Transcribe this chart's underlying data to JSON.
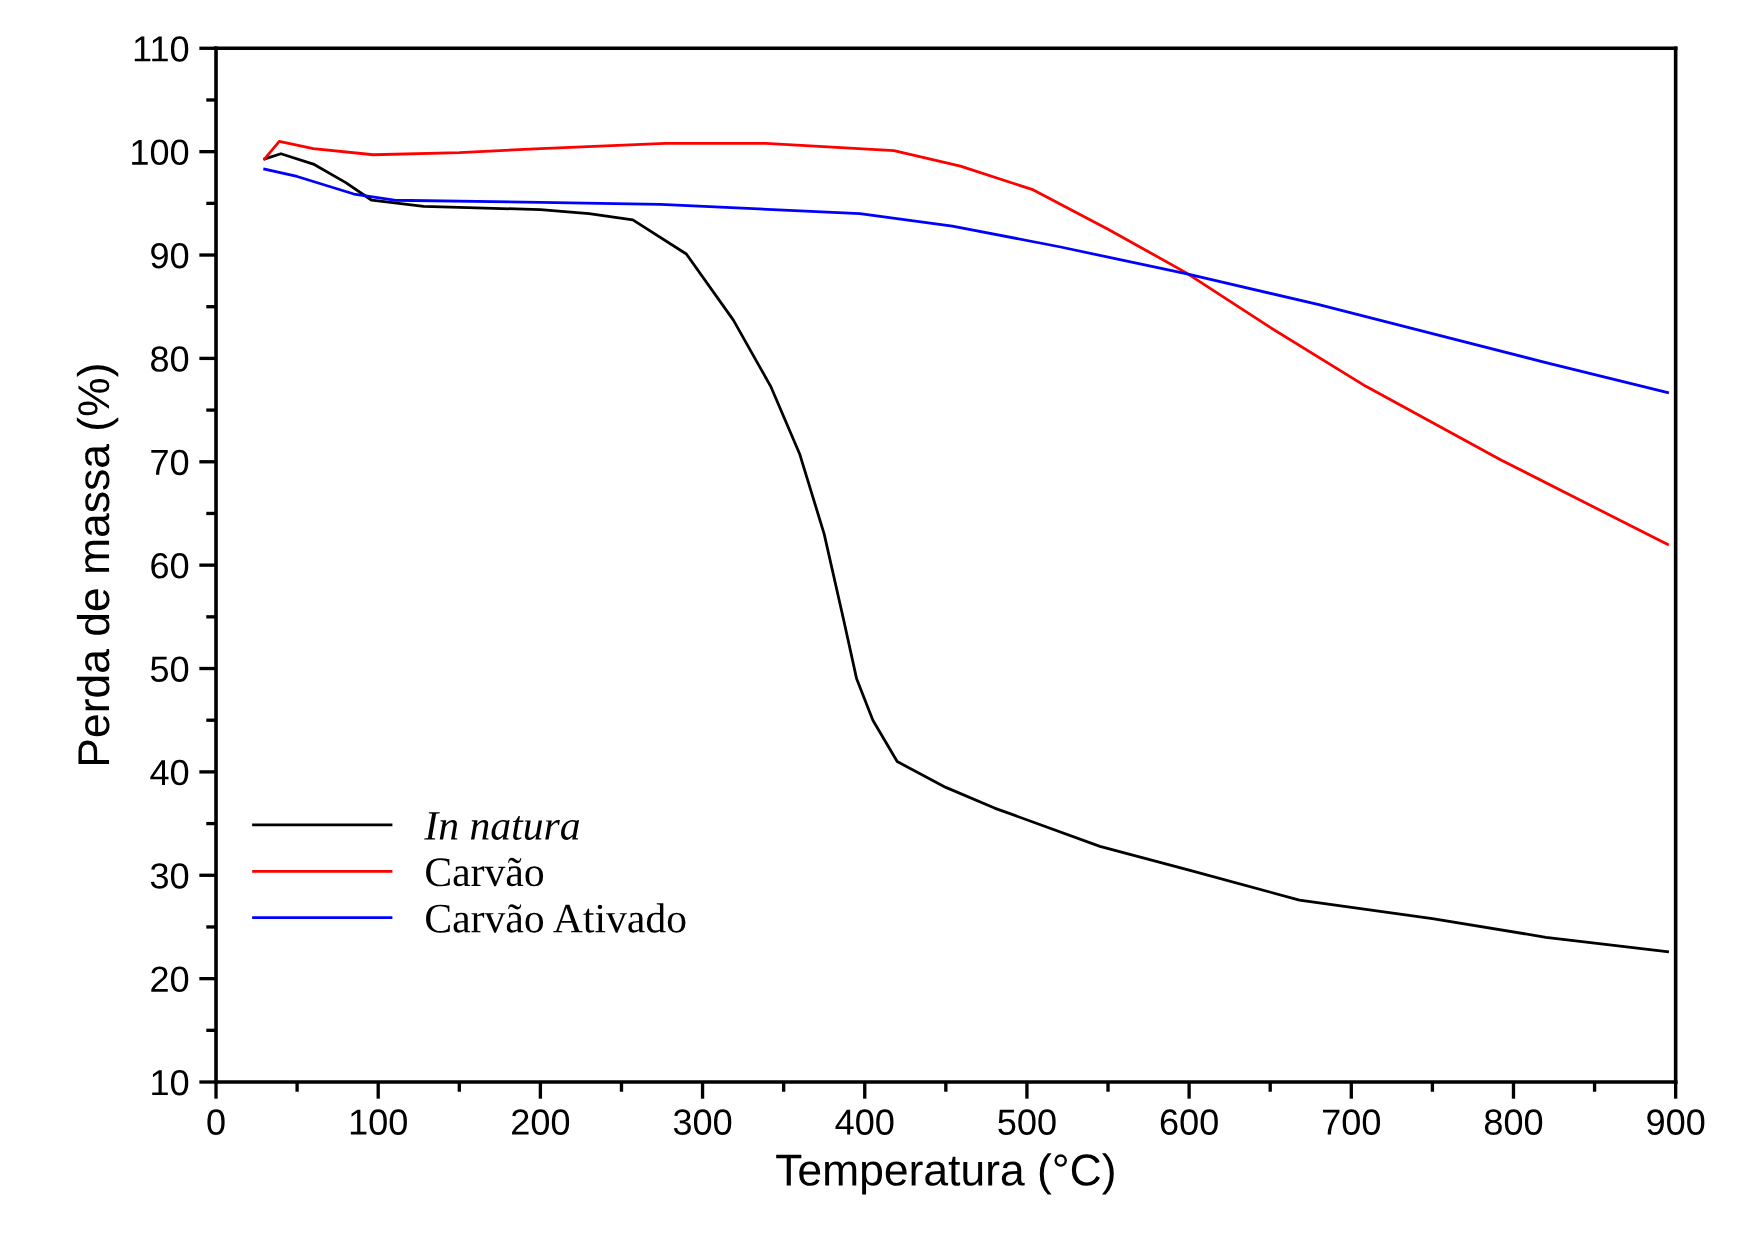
{
  "chart_data": {
    "type": "line",
    "xlabel": "Temperatura (°C)",
    "ylabel": "Perda de massa (%)",
    "xlim": [
      0,
      900
    ],
    "ylim": [
      10,
      110
    ],
    "xticks": [
      0,
      100,
      200,
      300,
      400,
      500,
      600,
      700,
      800,
      900
    ],
    "yticks": [
      10,
      20,
      30,
      40,
      50,
      60,
      70,
      80,
      90,
      100,
      110
    ],
    "grid": false,
    "legend": "bottom left",
    "marker": "none",
    "line_style": "solid",
    "series": [
      {
        "name": "In natura",
        "color": "#000000",
        "x": [
          30,
          40,
          60,
          80,
          96,
          128,
          150,
          200,
          230,
          257,
          290,
          319,
          342,
          360,
          375,
          387,
          395,
          405,
          420,
          450,
          480,
          545,
          600,
          668,
          750,
          820,
          895
        ],
        "values": [
          99.3,
          99.8,
          98.8,
          97,
          95.3,
          94.7,
          94.6,
          94.4,
          94.0,
          93.4,
          90.1,
          83.7,
          77.3,
          70.7,
          63,
          54.7,
          49,
          45,
          41,
          38.5,
          36.5,
          32.8,
          30.5,
          27.6,
          25.8,
          24,
          22.6
        ]
      },
      {
        "name": "Carvão",
        "color": "#ff0000",
        "x": [
          30,
          39,
          60,
          97,
          150,
          200,
          277,
          339,
          418,
          459,
          504,
          550,
          598,
          650,
          709,
          792,
          895
        ],
        "values": [
          99.3,
          101.0,
          100.3,
          99.7,
          99.9,
          100.3,
          100.8,
          100.8,
          100.1,
          98.6,
          96.3,
          92.5,
          88.3,
          83.0,
          77.3,
          70.2,
          62.0
        ]
      },
      {
        "name": "Carvão Ativado",
        "color": "#0000ff",
        "x": [
          30,
          50,
          85,
          110,
          200,
          274,
          397,
          454,
          520,
          598,
          680,
          750,
          820,
          895
        ],
        "values": [
          98.3,
          97.6,
          95.9,
          95.3,
          95.1,
          94.9,
          94.0,
          92.8,
          90.8,
          88.2,
          85.2,
          82.4,
          79.6,
          76.7
        ]
      }
    ]
  }
}
